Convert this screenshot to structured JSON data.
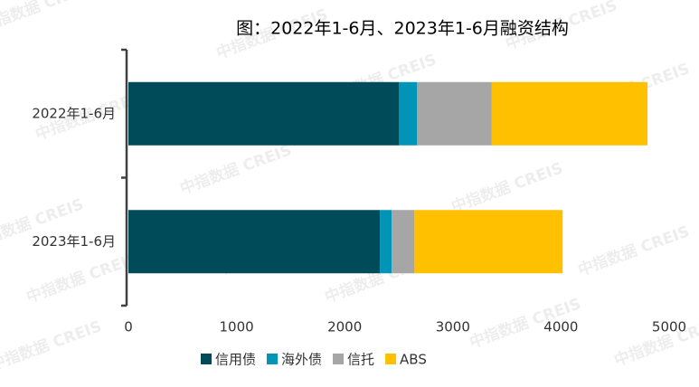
{
  "chart_data": {
    "type": "barh_stacked",
    "title": "图：2022年1-6月、2023年1-6月融资结构",
    "watermark": "中指数据 CREIS",
    "categories": [
      "2022年1-6月",
      "2023年1-6月"
    ],
    "series": [
      {
        "name": "信用债",
        "color": "#004b5a",
        "values": [
          2500,
          2325
        ]
      },
      {
        "name": "海外债",
        "color": "#0095b6",
        "values": [
          170,
          110
        ]
      },
      {
        "name": "信托",
        "color": "#a6a6a6",
        "values": [
          690,
          210
        ]
      },
      {
        "name": "ABS",
        "color": "#ffc000",
        "values": [
          1440,
          1370
        ]
      }
    ],
    "xlim": [
      0,
      5000
    ],
    "xticks": [
      0,
      1000,
      2000,
      3000,
      4000,
      5000
    ],
    "legend": "bottom",
    "grid": false
  }
}
